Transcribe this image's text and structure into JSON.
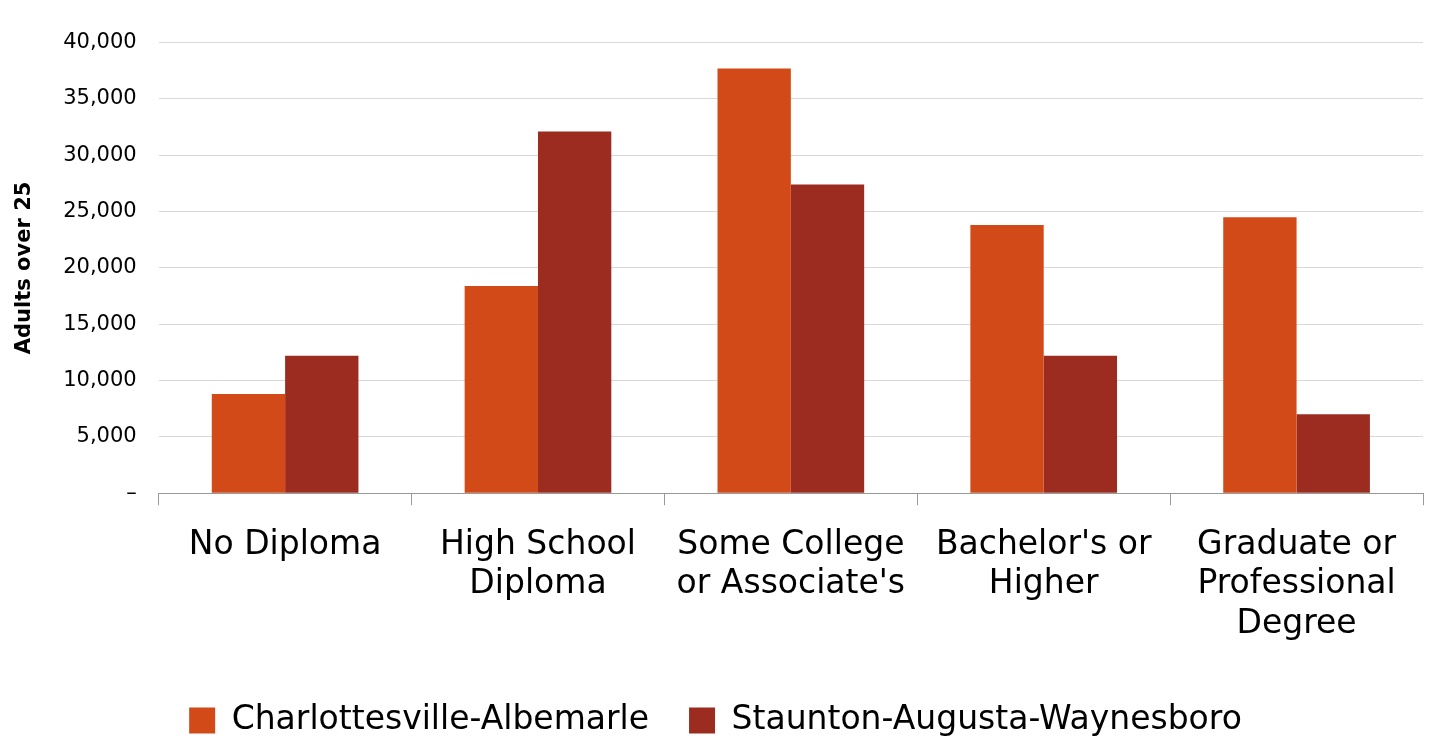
{
  "chart_data": {
    "type": "bar",
    "ylabel": "Adults over 25",
    "categories": [
      "No Diploma",
      "High School Diploma",
      "Some College or Associate's",
      "Bachelor's or Higher",
      "Graduate or Professional Degree"
    ],
    "series": [
      {
        "name": "Charlottesville-Albemarle",
        "color": "#d24a18",
        "values": [
          8800,
          18400,
          37700,
          23800,
          24500
        ]
      },
      {
        "name": "Staunton-Augusta-Waynesboro",
        "color": "#9b2c1f",
        "values": [
          12200,
          32100,
          27400,
          12200,
          7000
        ]
      }
    ],
    "ylim": [
      0,
      40000
    ],
    "yticks": [
      {
        "value": 0,
        "label": "–"
      },
      {
        "value": 5000,
        "label": "5,000"
      },
      {
        "value": 10000,
        "label": "10,000"
      },
      {
        "value": 15000,
        "label": "15,000"
      },
      {
        "value": 20000,
        "label": "20,000"
      },
      {
        "value": 25000,
        "label": "25,000"
      },
      {
        "value": 30000,
        "label": "30,000"
      },
      {
        "value": 35000,
        "label": "35,000"
      },
      {
        "value": 40000,
        "label": "40,000"
      }
    ],
    "grid": "y",
    "legend": "bottom"
  }
}
